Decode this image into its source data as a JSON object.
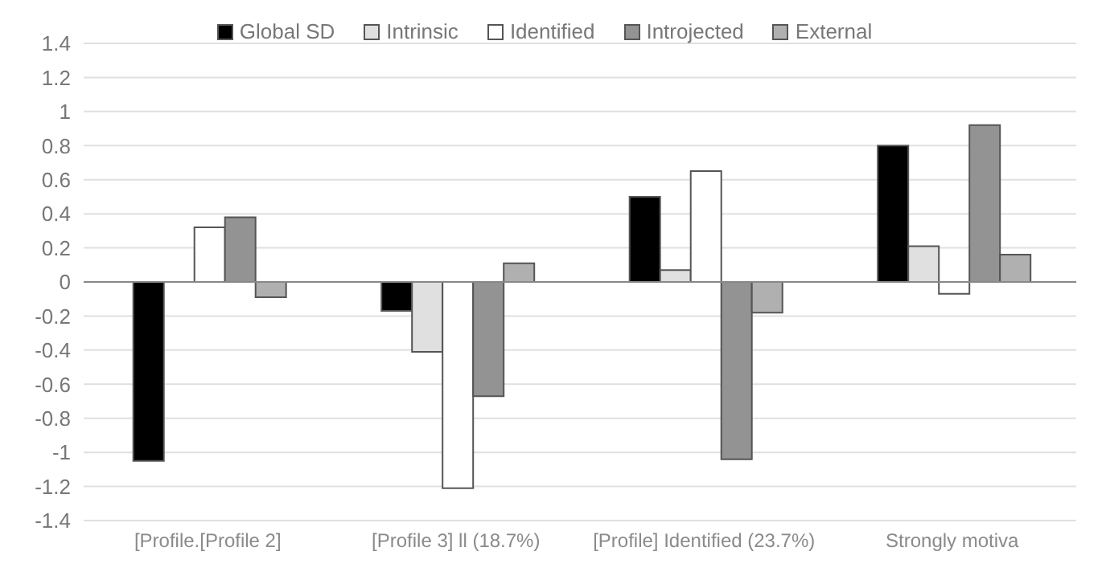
{
  "chart_data": {
    "type": "bar",
    "categories": [
      "[Profile.[Profile 2]",
      "[Profile 3] ll (18.7%)",
      "[Profile] Identified (23.7%)",
      "Strongly motiva"
    ],
    "series": [
      {
        "name": "Global SD",
        "color": "#000000",
        "values": [
          -1.05,
          -0.17,
          0.5,
          0.8
        ]
      },
      {
        "name": "Intrinsic",
        "color": "#e0e0e0",
        "values": [
          0.0,
          -0.41,
          0.07,
          0.21
        ]
      },
      {
        "name": "Identified",
        "color": "#ffffff",
        "values": [
          0.32,
          -1.21,
          0.65,
          -0.07
        ]
      },
      {
        "name": "Introjected",
        "color": "#939393",
        "values": [
          0.38,
          -0.67,
          -1.04,
          0.92
        ]
      },
      {
        "name": "External",
        "color": "#b0b0b0",
        "values": [
          -0.09,
          0.11,
          -0.18,
          0.16
        ]
      }
    ],
    "ylim": [
      -1.4,
      1.4
    ],
    "yticks": [
      -1.4,
      -1.2,
      -1,
      -0.8,
      -0.6,
      -0.4,
      -0.2,
      0,
      0.2,
      0.4,
      0.6,
      0.8,
      1,
      1.2,
      1.4
    ],
    "grid": "y",
    "legend": "top"
  }
}
